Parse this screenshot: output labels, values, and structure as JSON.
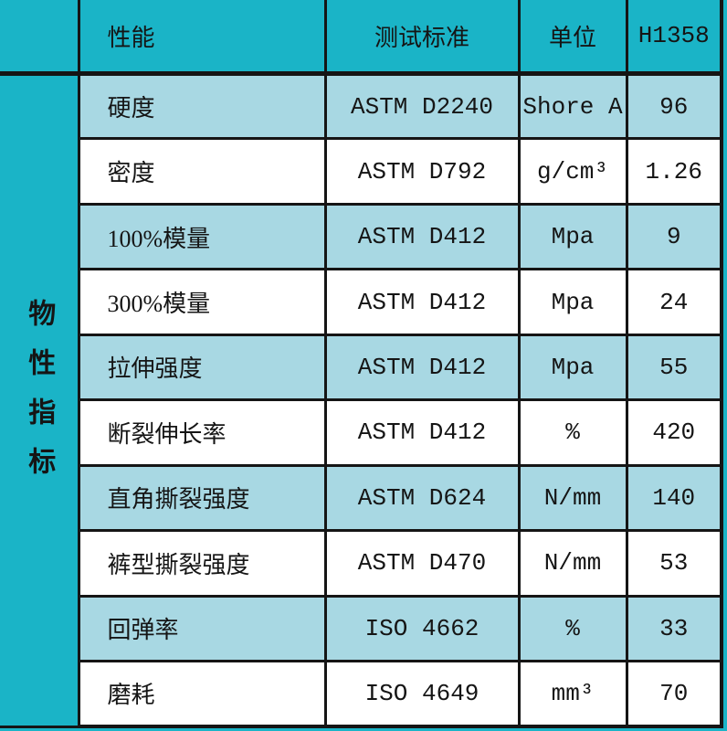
{
  "colors": {
    "teal": "#1ab4c7",
    "light_blue": "#a8d8e3",
    "white": "#ffffff",
    "border": "#151515",
    "text": "#151515"
  },
  "table": {
    "group_label": "物性指标",
    "headers": {
      "property": "性能",
      "standard": "测试标准",
      "unit": "单位",
      "grade": "H1358"
    },
    "rows": [
      {
        "property": "硬度",
        "standard": "ASTM D2240",
        "unit": "Shore A",
        "value": "96"
      },
      {
        "property": "密度",
        "standard": "ASTM D792",
        "unit": "g/cm³",
        "value": "1.26"
      },
      {
        "property": "100%模量",
        "standard": "ASTM D412",
        "unit": "Mpa",
        "value": "9"
      },
      {
        "property": "300%模量",
        "standard": "ASTM D412",
        "unit": "Mpa",
        "value": "24"
      },
      {
        "property": "拉伸强度",
        "standard": "ASTM D412",
        "unit": "Mpa",
        "value": "55"
      },
      {
        "property": "断裂伸长率",
        "standard": "ASTM D412",
        "unit": "%",
        "value": "420"
      },
      {
        "property": "直角撕裂强度",
        "standard": "ASTM D624",
        "unit": "N/mm",
        "value": "140"
      },
      {
        "property": "裤型撕裂强度",
        "standard": "ASTM D470",
        "unit": "N/mm",
        "value": "53"
      },
      {
        "property": "回弹率",
        "standard": "ISO 4662",
        "unit": "%",
        "value": "33"
      },
      {
        "property": "磨耗",
        "standard": "ISO 4649",
        "unit": "mm³",
        "value": "70"
      }
    ]
  }
}
